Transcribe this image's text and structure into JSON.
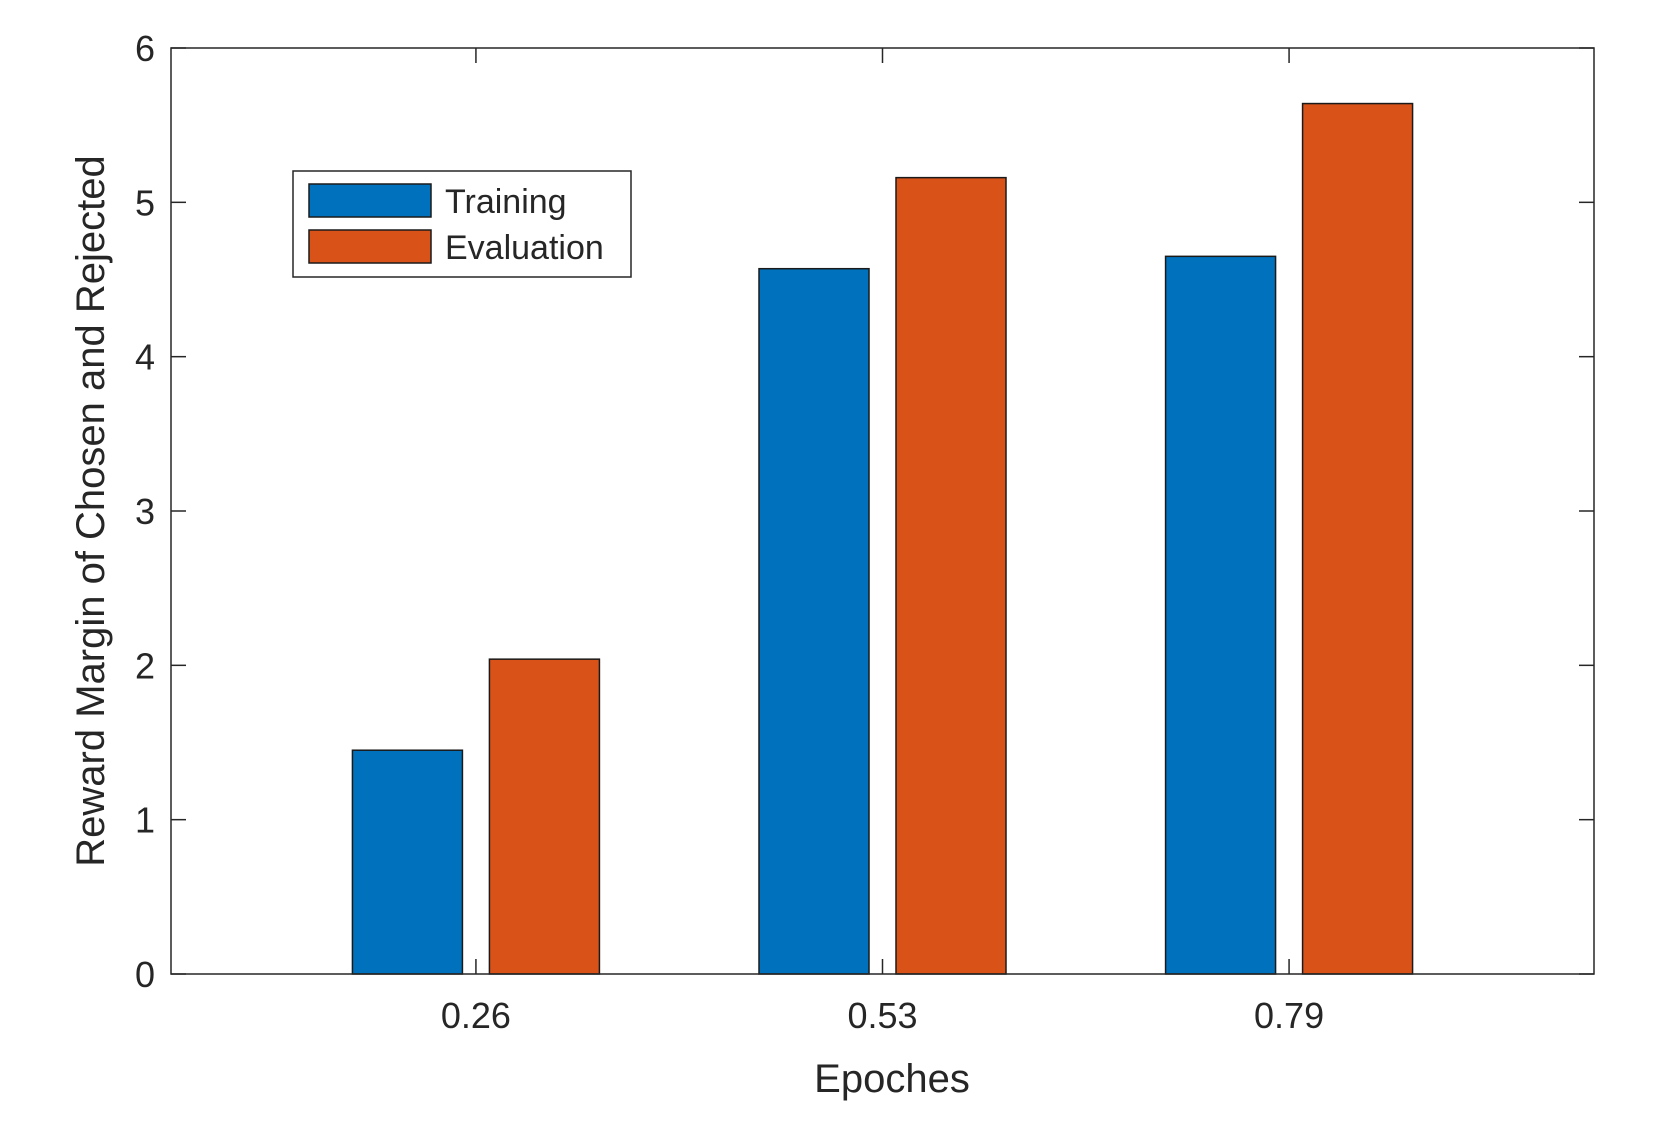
{
  "chart_data": {
    "type": "bar",
    "categories": [
      "0.26",
      "0.53",
      "0.79"
    ],
    "series": [
      {
        "name": "Training",
        "color": "#0072BD",
        "values": [
          1.45,
          4.57,
          4.65
        ]
      },
      {
        "name": "Evaluation",
        "color": "#D95319",
        "values": [
          2.04,
          5.16,
          5.64
        ]
      }
    ],
    "xlabel": "Epoches",
    "ylabel": "Reward Margin of Chosen and Rejected",
    "ylim": [
      0,
      6
    ],
    "yticks": [
      "0",
      "1",
      "2",
      "3",
      "4",
      "5",
      "6"
    ],
    "grid": false,
    "legend": {
      "position": "top-left"
    }
  }
}
